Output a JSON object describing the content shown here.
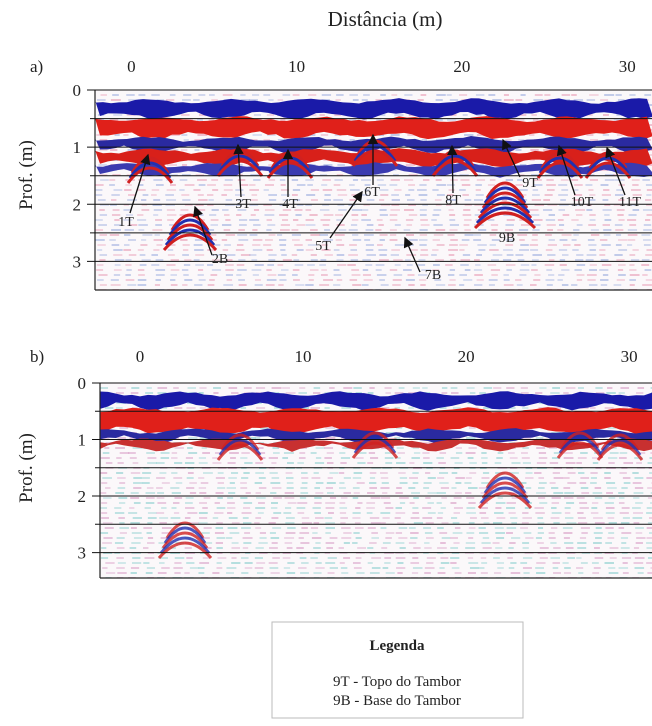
{
  "title": "Distância (m)",
  "panels": [
    {
      "label": "a)",
      "y_label": "Prof. (m)",
      "xlim": [
        -2.2,
        31.5
      ],
      "xticks": [
        0,
        10,
        20,
        30
      ],
      "ylim": [
        0,
        3.5
      ],
      "yticks": [
        0,
        1,
        2,
        3
      ],
      "annotations": [
        "1T",
        "2B",
        "3T",
        "4T",
        "5T",
        "6T",
        "7B",
        "8T",
        "9T",
        "9B",
        "10T",
        "11T"
      ]
    },
    {
      "label": "b)",
      "y_label": "Prof. (m)",
      "xlim": [
        -2.45,
        31.4
      ],
      "xticks": [
        0,
        10,
        20,
        30
      ],
      "ylim": [
        0,
        3.45
      ],
      "yticks": [
        0,
        1,
        2,
        3
      ]
    }
  ],
  "legend": {
    "title": "Legenda",
    "items": [
      "9T - Topo do Tambor",
      "9B - Base do Tambor"
    ]
  }
}
